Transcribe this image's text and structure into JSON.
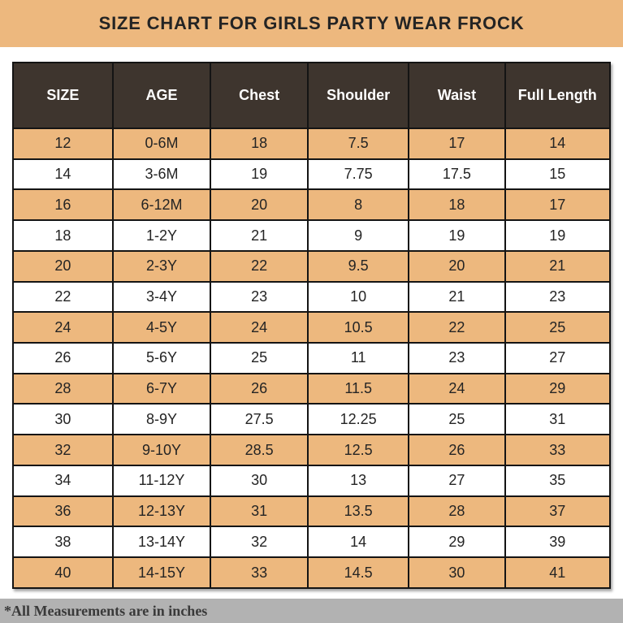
{
  "title": "SIZE CHART FOR GIRLS PARTY WEAR FROCK",
  "footnote": "*All Measurements are in inches",
  "colors": {
    "title_band_bg": "#edb87e",
    "header_bg": "#3e352e",
    "header_text": "#ffffff",
    "row_alt_bg": "#edb87e",
    "row_bg": "#ffffff",
    "border": "#141414",
    "footer_bg": "#b2b2b2",
    "text": "#242424"
  },
  "table": {
    "columns": [
      "SIZE",
      "AGE",
      "Chest",
      "Shoulder",
      "Waist",
      "Full Length"
    ],
    "rows": [
      [
        "12",
        "0-6M",
        "18",
        "7.5",
        "17",
        "14"
      ],
      [
        "14",
        "3-6M",
        "19",
        "7.75",
        "17.5",
        "15"
      ],
      [
        "16",
        "6-12M",
        "20",
        "8",
        "18",
        "17"
      ],
      [
        "18",
        "1-2Y",
        "21",
        "9",
        "19",
        "19"
      ],
      [
        "20",
        "2-3Y",
        "22",
        "9.5",
        "20",
        "21"
      ],
      [
        "22",
        "3-4Y",
        "23",
        "10",
        "21",
        "23"
      ],
      [
        "24",
        "4-5Y",
        "24",
        "10.5",
        "22",
        "25"
      ],
      [
        "26",
        "5-6Y",
        "25",
        "11",
        "23",
        "27"
      ],
      [
        "28",
        "6-7Y",
        "26",
        "11.5",
        "24",
        "29"
      ],
      [
        "30",
        "8-9Y",
        "27.5",
        "12.25",
        "25",
        "31"
      ],
      [
        "32",
        "9-10Y",
        "28.5",
        "12.5",
        "26",
        "33"
      ],
      [
        "34",
        "11-12Y",
        "30",
        "13",
        "27",
        "35"
      ],
      [
        "36",
        "12-13Y",
        "31",
        "13.5",
        "28",
        "37"
      ],
      [
        "38",
        "13-14Y",
        "32",
        "14",
        "29",
        "39"
      ],
      [
        "40",
        "14-15Y",
        "33",
        "14.5",
        "30",
        "41"
      ]
    ]
  },
  "chart_data": {
    "type": "table",
    "title": "SIZE CHART FOR GIRLS PARTY WEAR FROCK",
    "note": "*All Measurements are in inches",
    "columns": [
      "SIZE",
      "AGE",
      "Chest",
      "Shoulder",
      "Waist",
      "Full Length"
    ],
    "rows": [
      [
        "12",
        "0-6M",
        "18",
        "7.5",
        "17",
        "14"
      ],
      [
        "14",
        "3-6M",
        "19",
        "7.75",
        "17.5",
        "15"
      ],
      [
        "16",
        "6-12M",
        "20",
        "8",
        "18",
        "17"
      ],
      [
        "18",
        "1-2Y",
        "21",
        "9",
        "19",
        "19"
      ],
      [
        "20",
        "2-3Y",
        "22",
        "9.5",
        "20",
        "21"
      ],
      [
        "22",
        "3-4Y",
        "23",
        "10",
        "21",
        "23"
      ],
      [
        "24",
        "4-5Y",
        "24",
        "10.5",
        "22",
        "25"
      ],
      [
        "26",
        "5-6Y",
        "25",
        "11",
        "23",
        "27"
      ],
      [
        "28",
        "6-7Y",
        "26",
        "11.5",
        "24",
        "29"
      ],
      [
        "30",
        "8-9Y",
        "27.5",
        "12.25",
        "25",
        "31"
      ],
      [
        "32",
        "9-10Y",
        "28.5",
        "12.5",
        "26",
        "33"
      ],
      [
        "34",
        "11-12Y",
        "30",
        "13",
        "27",
        "35"
      ],
      [
        "36",
        "12-13Y",
        "31",
        "13.5",
        "28",
        "37"
      ],
      [
        "38",
        "13-14Y",
        "32",
        "14",
        "29",
        "39"
      ],
      [
        "40",
        "14-15Y",
        "33",
        "14.5",
        "30",
        "41"
      ]
    ]
  }
}
